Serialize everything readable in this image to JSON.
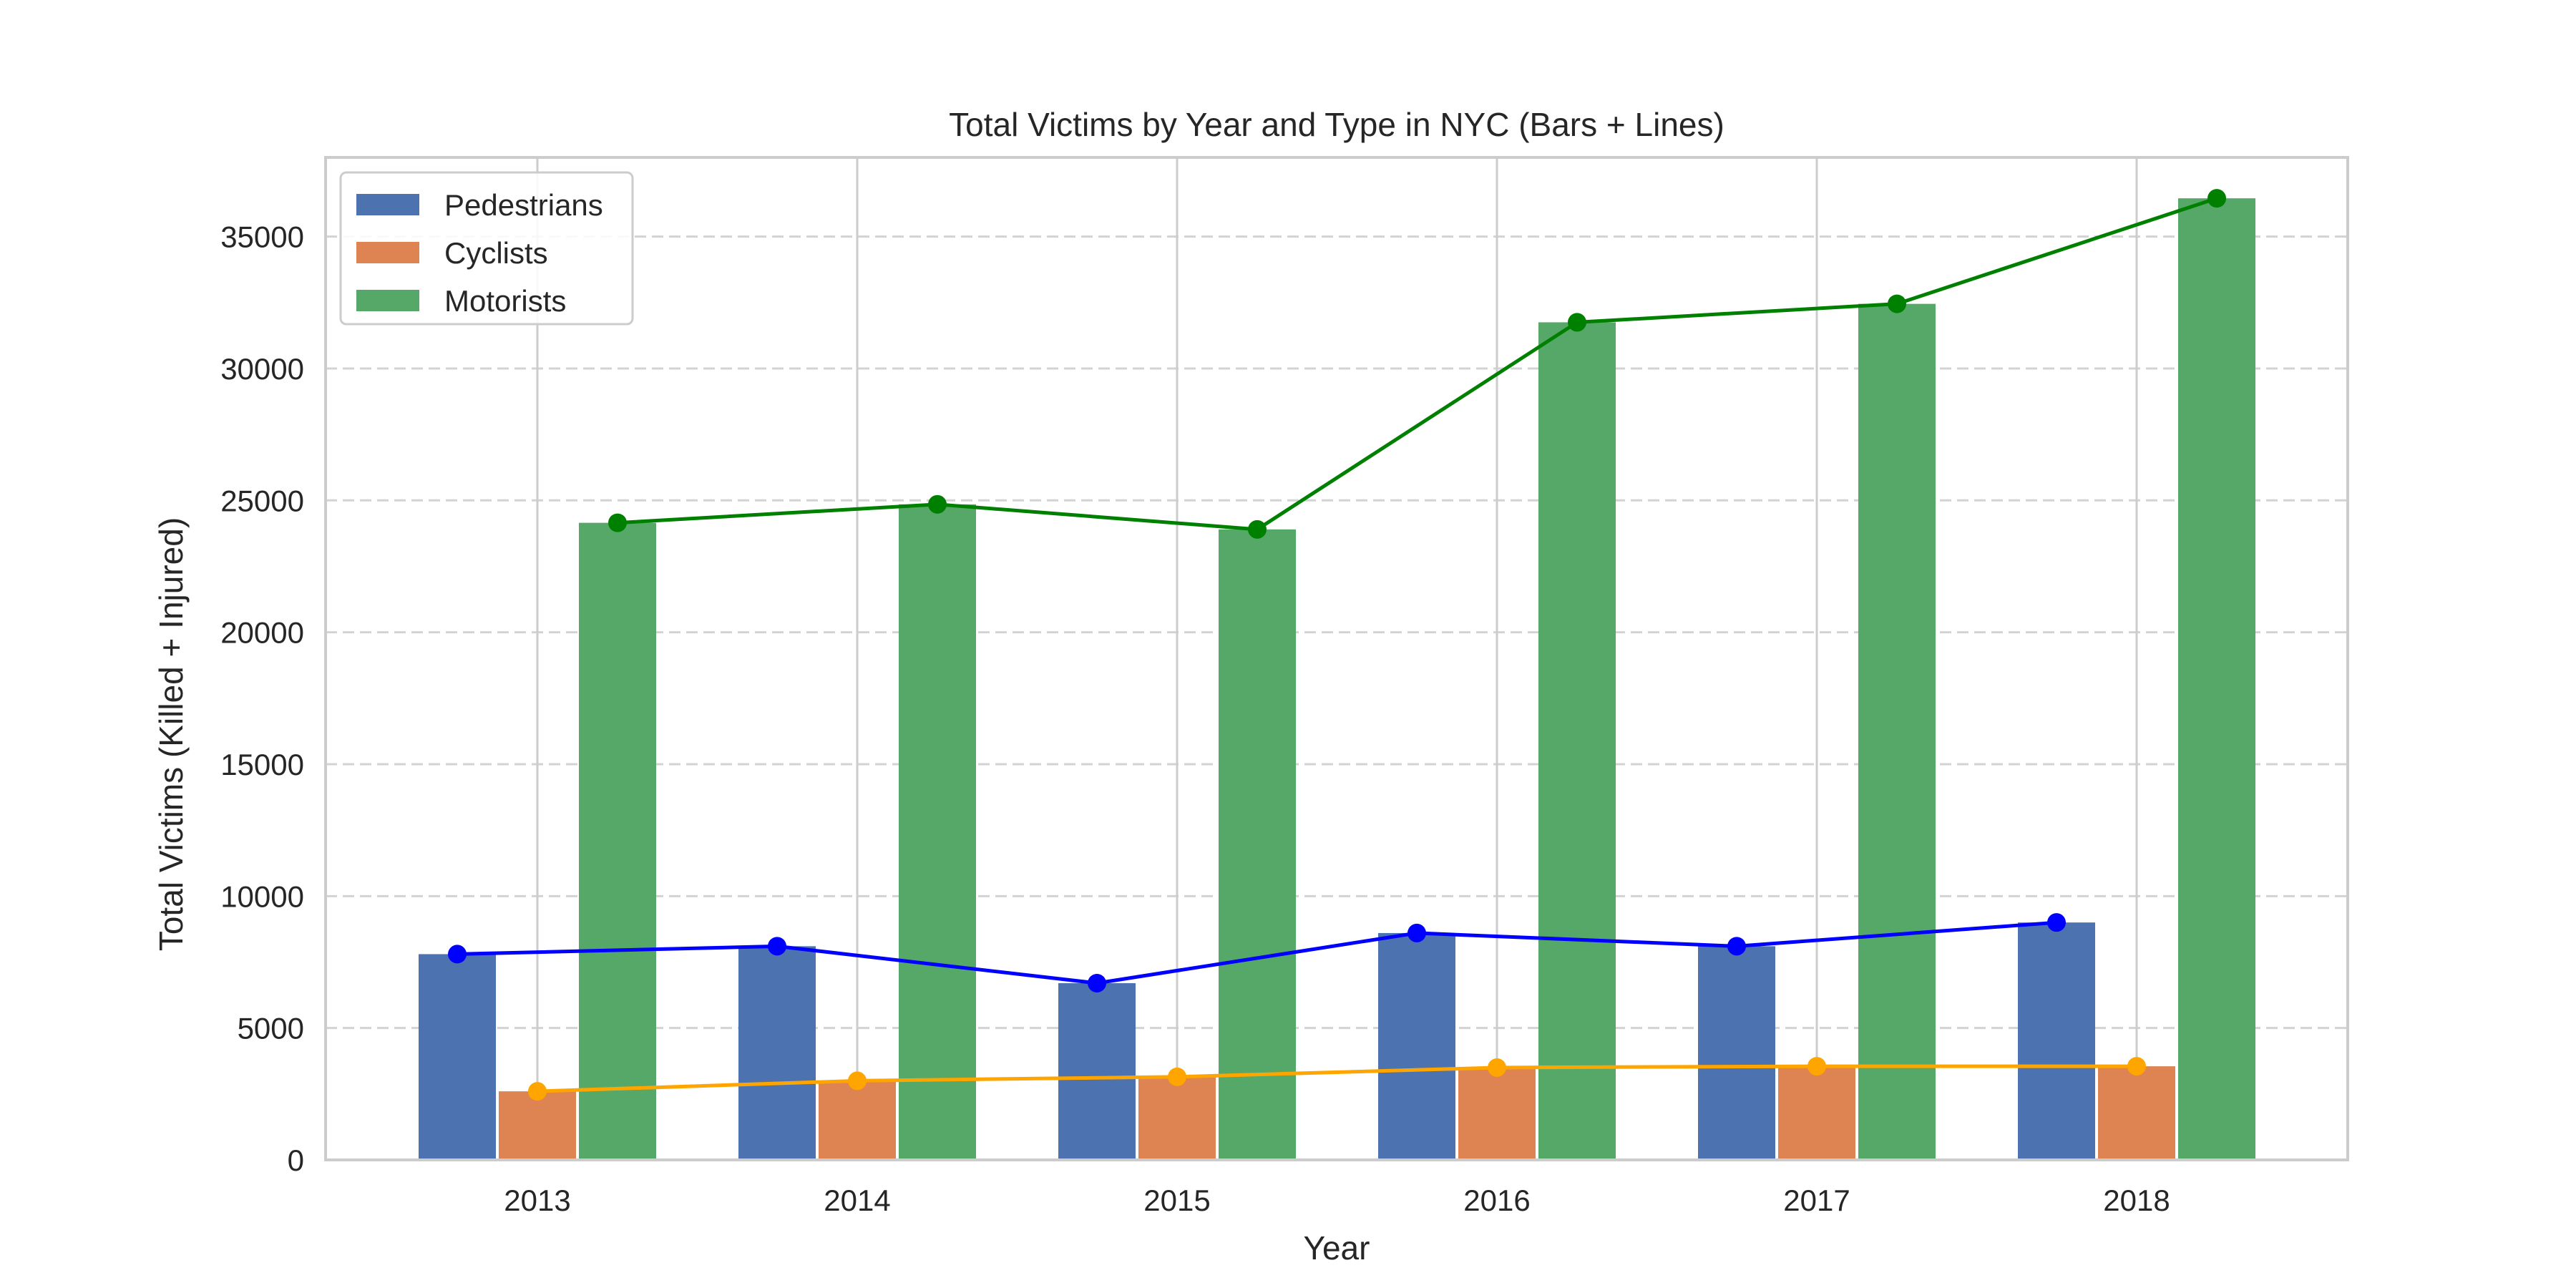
{
  "chart_data": {
    "type": "bar",
    "title": "Total Victims by Year and Type in NYC (Bars + Lines)",
    "xlabel": "Year",
    "ylabel": "Total Victims (Killed + Injured)",
    "categories": [
      "2013",
      "2014",
      "2015",
      "2016",
      "2017",
      "2018"
    ],
    "ylim": [
      0,
      38000
    ],
    "yticks": [
      0,
      5000,
      10000,
      15000,
      20000,
      25000,
      30000,
      35000
    ],
    "grid": {
      "x": true,
      "y": true,
      "y_style": "dashed"
    },
    "legend_position": "top-left",
    "series": [
      {
        "name": "Pedestrians",
        "values": [
          7800,
          8100,
          6700,
          8600,
          8100,
          9000
        ],
        "bar_color": "#4c72b0",
        "line_color": "#0000ff"
      },
      {
        "name": "Cyclists",
        "values": [
          2600,
          3000,
          3150,
          3500,
          3550,
          3550
        ],
        "bar_color": "#dd8452",
        "line_color": "#ffa500"
      },
      {
        "name": "Motorists",
        "values": [
          24150,
          24850,
          23900,
          31750,
          32450,
          36450
        ],
        "bar_color": "#55a868",
        "line_color": "#008000"
      }
    ]
  }
}
